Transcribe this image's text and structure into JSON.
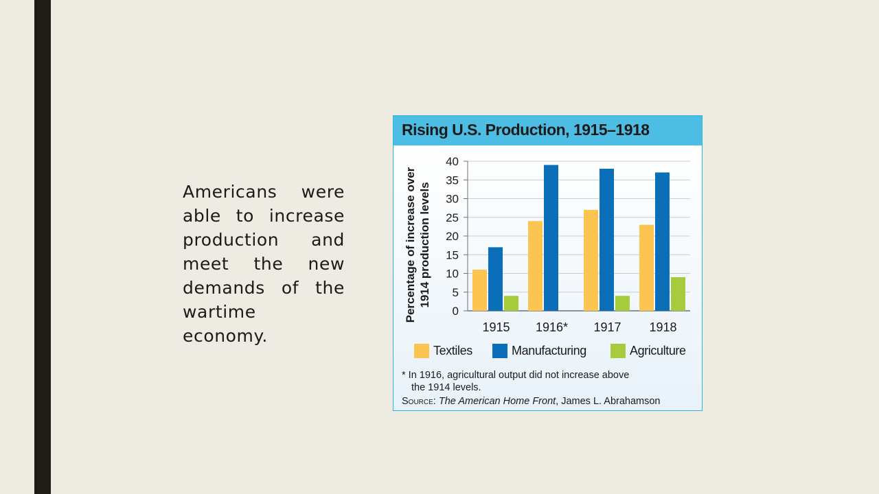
{
  "slide": {
    "body_text": "Americans were able to increase production and meet the new demands of the wartime economy."
  },
  "colors": {
    "sidebar": "#1d1d16",
    "textiles": "#fcc552",
    "manufacturing": "#0a6eb8",
    "agriculture": "#a6cb3c",
    "title_band": "#4dbde4"
  },
  "chart_data": {
    "type": "bar",
    "title": "Rising U.S. Production, 1915–1918",
    "ylabel_lines": [
      "Percentage of increase over",
      "1914 production levels"
    ],
    "xlabel": "",
    "categories": [
      "1915",
      "1916*",
      "1917",
      "1918"
    ],
    "ylim": [
      0,
      40
    ],
    "yticks": [
      0,
      5,
      10,
      15,
      20,
      25,
      30,
      35,
      40
    ],
    "grid": true,
    "legend_position": "bottom",
    "series": [
      {
        "name": "Textiles",
        "color": "#fcc552",
        "values": [
          11,
          24,
          27,
          23
        ]
      },
      {
        "name": "Manufacturing",
        "color": "#0a6eb8",
        "values": [
          17,
          39,
          38,
          37
        ]
      },
      {
        "name": "Agriculture",
        "color": "#a6cb3c",
        "values": [
          4,
          0,
          4,
          9
        ]
      }
    ],
    "footnote_lines": [
      "* In 1916, agricultural output did not increase above",
      "the 1914 levels."
    ],
    "source_label": "Source",
    "source_work": "The American Home Front",
    "source_author": ", James L. Abrahamson"
  }
}
